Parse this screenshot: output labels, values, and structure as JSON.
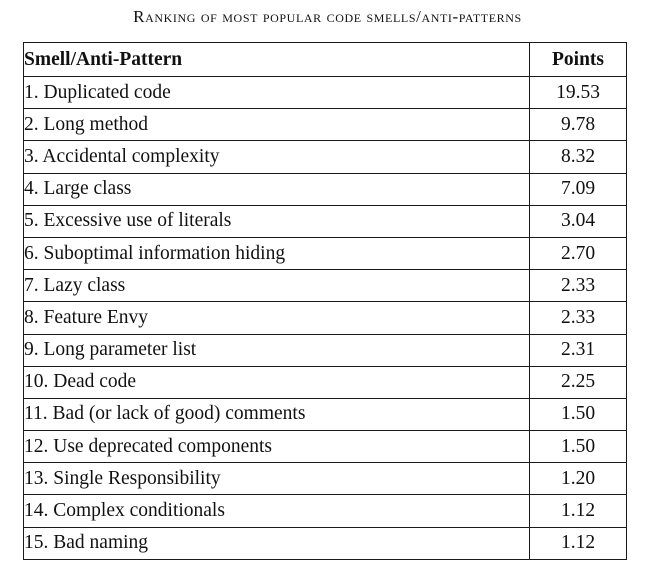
{
  "caption": "Ranking of most popular code smells/anti-patterns",
  "table": {
    "headers": [
      "Smell/Anti-Pattern",
      "Points"
    ],
    "rows": [
      [
        "1. Duplicated code",
        "19.53"
      ],
      [
        "2. Long method",
        "9.78"
      ],
      [
        "3. Accidental complexity",
        "8.32"
      ],
      [
        "4. Large class",
        "7.09"
      ],
      [
        "5. Excessive use of literals",
        "3.04"
      ],
      [
        "6. Suboptimal information hiding",
        "2.70"
      ],
      [
        "7. Lazy class",
        "2.33"
      ],
      [
        "8. Feature Envy",
        "2.33"
      ],
      [
        "9. Long parameter list",
        "2.31"
      ],
      [
        "10. Dead code",
        "2.25"
      ],
      [
        "11. Bad (or lack of good) comments",
        "1.50"
      ],
      [
        "12. Use deprecated components",
        "1.50"
      ],
      [
        "13. Single Responsibility",
        "1.20"
      ],
      [
        "14. Complex conditionals",
        "1.12"
      ],
      [
        "15. Bad naming",
        "1.12"
      ]
    ]
  }
}
